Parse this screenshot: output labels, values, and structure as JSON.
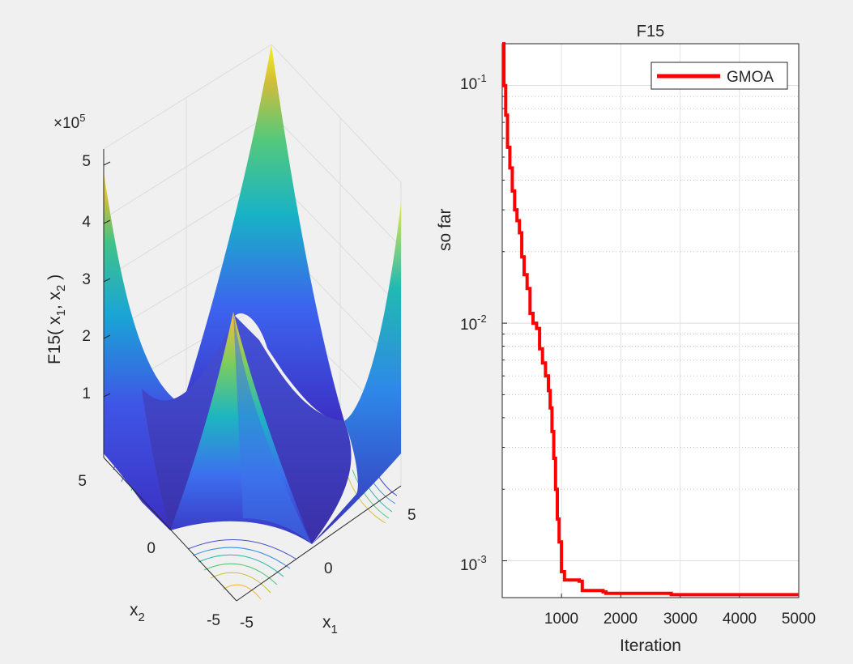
{
  "chart_data": [
    {
      "type": "surface",
      "zlabel_main": "F15( x",
      "zlabel_sub1": "1",
      "zlabel_mid": ", x",
      "zlabel_sub2": "2",
      "zlabel_end": " )",
      "z_multiplier": {
        "base": "×10",
        "exp": "5"
      },
      "z_ticks": [
        "1",
        "2",
        "3",
        "4",
        "5"
      ],
      "x1_label": {
        "main": "x",
        "sub": "1"
      },
      "x2_label": {
        "main": "x",
        "sub": "2"
      },
      "x1_ticks": [
        "-5",
        "0",
        "5"
      ],
      "x2_ticks": [
        "-5",
        "0",
        "5"
      ],
      "x1_range": [
        -5,
        5
      ],
      "x2_range": [
        -5,
        5
      ],
      "z_range": [
        0,
        500000
      ],
      "colormap": [
        "#3e26a8",
        "#4a4ef0",
        "#2f7feb",
        "#1aa7d4",
        "#19c1aa",
        "#61cb70",
        "#c9bf3a",
        "#fbba3a",
        "#f9fb15"
      ]
    },
    {
      "type": "line",
      "title": "F15",
      "xlabel": "Iteration",
      "ylabel": "so far",
      "yscale": "log",
      "xlim": [
        1,
        5000
      ],
      "ylim": [
        0.0007,
        0.15
      ],
      "x_ticks": [
        "1000",
        "2000",
        "3000",
        "4000",
        "5000"
      ],
      "y_ticks": [
        {
          "base": "10",
          "exp": "-1"
        },
        {
          "base": "10",
          "exp": "-2"
        },
        {
          "base": "10",
          "exp": "-3"
        }
      ],
      "grid": true,
      "legend": "top-right",
      "series": [
        {
          "name": "GMOA",
          "color": "#ff0000",
          "points": [
            [
              1,
              0.15
            ],
            [
              30,
              0.1
            ],
            [
              60,
              0.075
            ],
            [
              90,
              0.055
            ],
            [
              130,
              0.045
            ],
            [
              170,
              0.036
            ],
            [
              210,
              0.03
            ],
            [
              250,
              0.027
            ],
            [
              290,
              0.024
            ],
            [
              330,
              0.019
            ],
            [
              370,
              0.016
            ],
            [
              420,
              0.014
            ],
            [
              470,
              0.011
            ],
            [
              520,
              0.01
            ],
            [
              580,
              0.0095
            ],
            [
              630,
              0.0078
            ],
            [
              680,
              0.0068
            ],
            [
              730,
              0.006
            ],
            [
              780,
              0.0052
            ],
            [
              810,
              0.0044
            ],
            [
              840,
              0.0035
            ],
            [
              870,
              0.0027
            ],
            [
              900,
              0.002
            ],
            [
              930,
              0.0015
            ],
            [
              960,
              0.0012
            ],
            [
              1000,
              0.0009
            ],
            [
              1050,
              0.00083
            ],
            [
              1300,
              0.00082
            ],
            [
              1350,
              0.00075
            ],
            [
              1700,
              0.00074
            ],
            [
              1750,
              0.00073
            ],
            [
              2800,
              0.00073
            ],
            [
              2850,
              0.00072
            ],
            [
              4200,
              0.00072
            ],
            [
              5000,
              0.00072
            ]
          ]
        }
      ]
    }
  ]
}
